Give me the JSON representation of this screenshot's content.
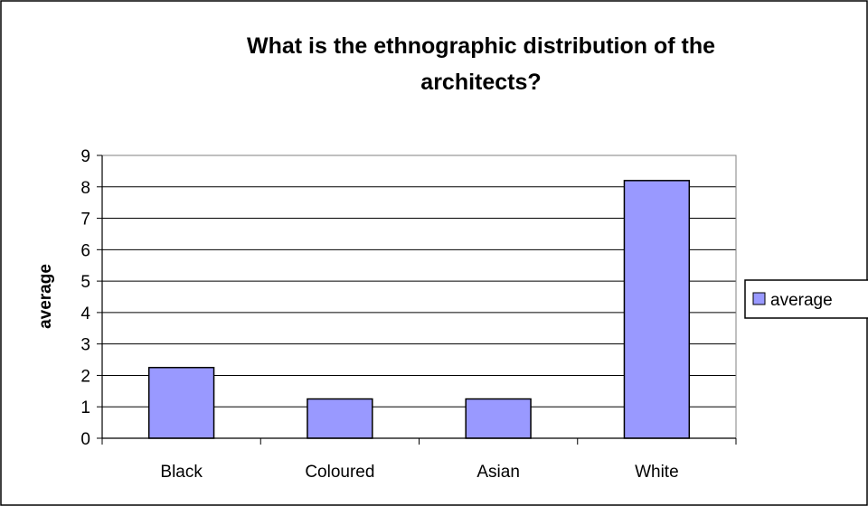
{
  "chart_data": {
    "type": "bar",
    "title_lines": [
      "What is the ethnographic distribution of the",
      "architects?"
    ],
    "ylabel": "average",
    "xlabel": "",
    "categories": [
      "Black",
      "Coloured",
      "Asian",
      "White"
    ],
    "series": [
      {
        "name": "average",
        "values": [
          2.25,
          1.25,
          1.25,
          8.2
        ]
      }
    ],
    "ylim": [
      0,
      9
    ],
    "yticks": [
      "0",
      "1",
      "2",
      "3",
      "4",
      "5",
      "6",
      "7",
      "8",
      "9"
    ],
    "grid": true,
    "legend_position": "right",
    "colors": {
      "bar_fill": "#9999ff",
      "bar_stroke": "#000000",
      "grid": "#000000",
      "plot_border": "#808080",
      "frame": "#000000"
    }
  }
}
